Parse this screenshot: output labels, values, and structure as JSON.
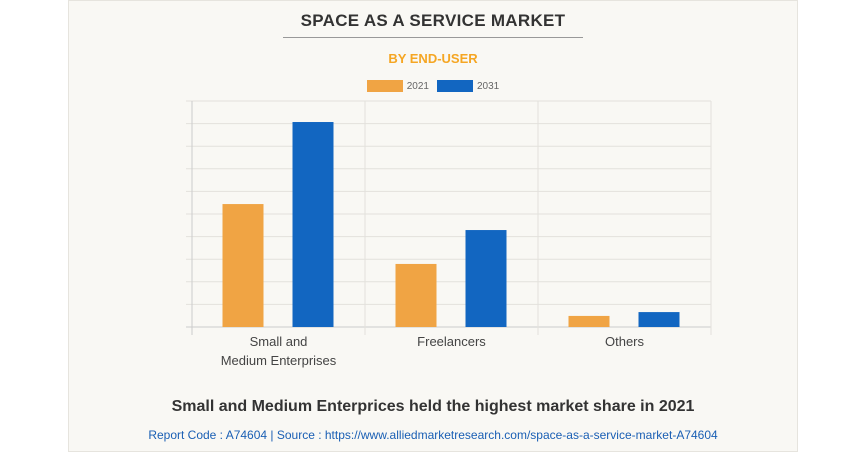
{
  "title": "SPACE AS A SERVICE MARKET",
  "subtitle": "BY END-USER",
  "footer": {
    "headline": "Small and Medium Enterprices held the highest market share in 2021",
    "source": "Report Code : A74604  |  Source : https://www.alliedmarketresearch.com/space-as-a-service-market-A74604"
  },
  "chart_data": {
    "type": "bar",
    "title": "SPACE AS A SERVICE MARKET",
    "subtitle": "BY END-USER",
    "categories": [
      "Small and|Medium Enterprises",
      "Freelancers",
      "Others"
    ],
    "series": [
      {
        "name": "2021",
        "color": "#f0a444",
        "values": [
          5.44,
          2.79,
          0.49
        ]
      },
      {
        "name": "2031",
        "color": "#1266c1",
        "values": [
          9.07,
          4.29,
          0.66
        ]
      }
    ],
    "ylim": [
      0,
      10
    ],
    "grid": true,
    "legend": "top"
  }
}
